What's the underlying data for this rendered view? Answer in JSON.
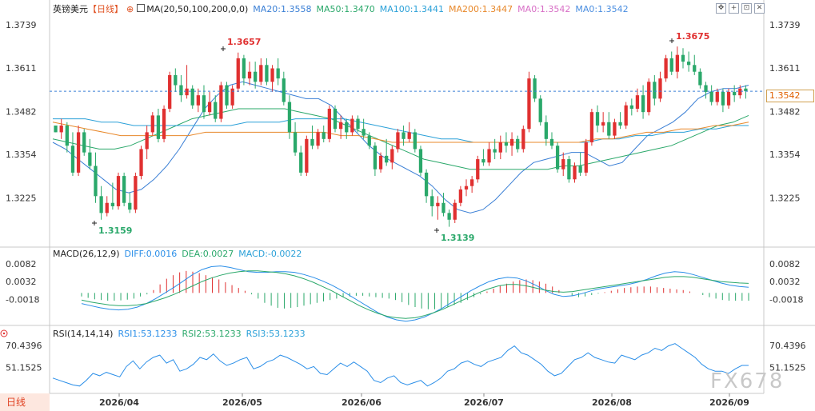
{
  "symbol": {
    "name": "英镑美元",
    "period": "【日线】"
  },
  "ma_legend": {
    "title": "MA(20,50,100,200,0,0)",
    "items": [
      {
        "label": "MA20:1.3558",
        "color": "#3a7fd5"
      },
      {
        "label": "MA50:1.3470",
        "color": "#2aa86a"
      },
      {
        "label": "MA100:1.3441",
        "color": "#2aa0d8"
      },
      {
        "label": "MA200:1.3447",
        "color": "#e8882a"
      },
      {
        "label": "MA0:1.3542",
        "color": "#d86fc6"
      },
      {
        "label": "MA0:1.3542",
        "color": "#4a8ee0"
      }
    ]
  },
  "toolbar": {
    "icons": [
      "move-icon",
      "crosshair-icon",
      "zoom-icon",
      "close-icon"
    ]
  },
  "current_price": "1.3542",
  "price_axis": {
    "ticks": [
      "1.3739",
      "1.3611",
      "1.3482",
      "1.3354",
      "1.3225"
    ]
  },
  "annotations": {
    "high_1": "1.3657",
    "high_2": "1.3675",
    "low_1": "1.3159",
    "low_2": "1.3139"
  },
  "macd": {
    "title": "MACD(26,12,9)",
    "diff": {
      "label": "DIFF:0.0016",
      "color": "#2a8ee8"
    },
    "dea": {
      "label": "DEA:0.0027",
      "color": "#2aa86a"
    },
    "macd": {
      "label": "MACD:-0.0022",
      "color": "#2aa0d8"
    },
    "ticks": [
      "0.0082",
      "0.0032",
      "-0.0018"
    ]
  },
  "rsi": {
    "title": "RSI(14,14,14)",
    "rsi1": {
      "label": "RSI1:53.1233"
    },
    "rsi2": {
      "label": "RSI2:53.1233"
    },
    "rsi3": {
      "label": "RSI3:53.1233"
    },
    "ticks_left": [
      "70.4396",
      "51.1525"
    ],
    "ticks_right": [
      "70.4396",
      "51.1525"
    ]
  },
  "date_axis": [
    "2026/04",
    "2026/05",
    "2026/06",
    "2026/07",
    "2026/08",
    "2026/09"
  ],
  "period_button": "日线",
  "watermark": "FX678",
  "colors": {
    "up": "#e03030",
    "down": "#2aa86a",
    "axis": "#c8c8c8",
    "dashed_price": "#3a7fd5"
  },
  "chart_data": {
    "type": "candlestick",
    "ylim": [
      1.31,
      1.378
    ],
    "x_labels": [
      "2026/04",
      "2026/05",
      "2026/06",
      "2026/07",
      "2026/08",
      "2026/09"
    ],
    "candles": [
      [
        1.344,
        1.344,
        1.342,
        1.342
      ],
      [
        1.342,
        1.346,
        1.34,
        1.344
      ],
      [
        1.344,
        1.345,
        1.336,
        1.338
      ],
      [
        1.338,
        1.342,
        1.329,
        1.33
      ],
      [
        1.33,
        1.344,
        1.329,
        1.342
      ],
      [
        1.342,
        1.343,
        1.335,
        1.336
      ],
      [
        1.336,
        1.34,
        1.331,
        1.332
      ],
      [
        1.332,
        1.336,
        1.321,
        1.323
      ],
      [
        1.323,
        1.326,
        1.316,
        1.318
      ],
      [
        1.318,
        1.323,
        1.317,
        1.321
      ],
      [
        1.321,
        1.327,
        1.319,
        1.32
      ],
      [
        1.32,
        1.33,
        1.319,
        1.329
      ],
      [
        1.329,
        1.33,
        1.32,
        1.321
      ],
      [
        1.321,
        1.324,
        1.318,
        1.319
      ],
      [
        1.319,
        1.33,
        1.318,
        1.329
      ],
      [
        1.329,
        1.338,
        1.328,
        1.337
      ],
      [
        1.337,
        1.344,
        1.334,
        1.342
      ],
      [
        1.342,
        1.348,
        1.341,
        1.347
      ],
      [
        1.347,
        1.349,
        1.339,
        1.34
      ],
      [
        1.34,
        1.35,
        1.339,
        1.349
      ],
      [
        1.349,
        1.36,
        1.348,
        1.359
      ],
      [
        1.359,
        1.361,
        1.354,
        1.356
      ],
      [
        1.356,
        1.359,
        1.351,
        1.353
      ],
      [
        1.353,
        1.362,
        1.352,
        1.355
      ],
      [
        1.355,
        1.356,
        1.349,
        1.35
      ],
      [
        1.35,
        1.355,
        1.348,
        1.353
      ],
      [
        1.353,
        1.356,
        1.346,
        1.348
      ],
      [
        1.348,
        1.354,
        1.347,
        1.351
      ],
      [
        1.351,
        1.353,
        1.345,
        1.346
      ],
      [
        1.346,
        1.357,
        1.345,
        1.356
      ],
      [
        1.356,
        1.357,
        1.349,
        1.35
      ],
      [
        1.35,
        1.356,
        1.349,
        1.355
      ],
      [
        1.355,
        1.3657,
        1.354,
        1.364
      ],
      [
        1.364,
        1.365,
        1.356,
        1.358
      ],
      [
        1.358,
        1.363,
        1.356,
        1.36
      ],
      [
        1.36,
        1.363,
        1.355,
        1.357
      ],
      [
        1.357,
        1.364,
        1.356,
        1.362
      ],
      [
        1.362,
        1.364,
        1.356,
        1.357
      ],
      [
        1.357,
        1.362,
        1.354,
        1.361
      ],
      [
        1.361,
        1.364,
        1.356,
        1.358
      ],
      [
        1.358,
        1.36,
        1.35,
        1.351
      ],
      [
        1.351,
        1.353,
        1.34,
        1.342
      ],
      [
        1.342,
        1.345,
        1.335,
        1.336
      ],
      [
        1.336,
        1.338,
        1.329,
        1.33
      ],
      [
        1.33,
        1.341,
        1.329,
        1.34
      ],
      [
        1.34,
        1.344,
        1.337,
        1.338
      ],
      [
        1.338,
        1.343,
        1.337,
        1.342
      ],
      [
        1.342,
        1.344,
        1.339,
        1.34
      ],
      [
        1.34,
        1.35,
        1.339,
        1.349
      ],
      [
        1.349,
        1.35,
        1.342,
        1.343
      ],
      [
        1.343,
        1.347,
        1.34,
        1.345
      ],
      [
        1.345,
        1.346,
        1.34,
        1.342
      ],
      [
        1.342,
        1.347,
        1.341,
        1.346
      ],
      [
        1.346,
        1.347,
        1.342,
        1.343
      ],
      [
        1.343,
        1.346,
        1.34,
        1.341
      ],
      [
        1.341,
        1.342,
        1.337,
        1.338
      ],
      [
        1.338,
        1.339,
        1.329,
        1.331
      ],
      [
        1.331,
        1.336,
        1.33,
        1.335
      ],
      [
        1.335,
        1.34,
        1.332,
        1.333
      ],
      [
        1.333,
        1.338,
        1.331,
        1.337
      ],
      [
        1.337,
        1.343,
        1.336,
        1.342
      ],
      [
        1.342,
        1.344,
        1.338,
        1.34
      ],
      [
        1.34,
        1.345,
        1.339,
        1.342
      ],
      [
        1.342,
        1.343,
        1.336,
        1.337
      ],
      [
        1.337,
        1.338,
        1.329,
        1.33
      ],
      [
        1.33,
        1.331,
        1.321,
        1.323
      ],
      [
        1.323,
        1.325,
        1.317,
        1.32
      ],
      [
        1.32,
        1.323,
        1.316,
        1.321
      ],
      [
        1.321,
        1.324,
        1.317,
        1.318
      ],
      [
        1.318,
        1.319,
        1.3139,
        1.316
      ],
      [
        1.316,
        1.322,
        1.315,
        1.321
      ],
      [
        1.321,
        1.326,
        1.32,
        1.325
      ],
      [
        1.325,
        1.328,
        1.323,
        1.326
      ],
      [
        1.326,
        1.329,
        1.324,
        1.328
      ],
      [
        1.328,
        1.335,
        1.327,
        1.334
      ],
      [
        1.334,
        1.337,
        1.332,
        1.333
      ],
      [
        1.333,
        1.339,
        1.332,
        1.337
      ],
      [
        1.337,
        1.34,
        1.334,
        1.336
      ],
      [
        1.336,
        1.341,
        1.334,
        1.339
      ],
      [
        1.339,
        1.342,
        1.336,
        1.338
      ],
      [
        1.338,
        1.342,
        1.335,
        1.34
      ],
      [
        1.34,
        1.341,
        1.336,
        1.337
      ],
      [
        1.337,
        1.344,
        1.336,
        1.343
      ],
      [
        1.343,
        1.36,
        1.342,
        1.358
      ],
      [
        1.358,
        1.359,
        1.351,
        1.352
      ],
      [
        1.352,
        1.353,
        1.344,
        1.345
      ],
      [
        1.345,
        1.347,
        1.338,
        1.34
      ],
      [
        1.34,
        1.342,
        1.337,
        1.338
      ],
      [
        1.338,
        1.339,
        1.33,
        1.331
      ],
      [
        1.331,
        1.336,
        1.329,
        1.334
      ],
      [
        1.334,
        1.335,
        1.327,
        1.328
      ],
      [
        1.328,
        1.333,
        1.327,
        1.332
      ],
      [
        1.332,
        1.336,
        1.329,
        1.33
      ],
      [
        1.33,
        1.34,
        1.329,
        1.339
      ],
      [
        1.339,
        1.349,
        1.338,
        1.348
      ],
      [
        1.348,
        1.35,
        1.342,
        1.344
      ],
      [
        1.344,
        1.348,
        1.342,
        1.345
      ],
      [
        1.345,
        1.348,
        1.34,
        1.341
      ],
      [
        1.341,
        1.346,
        1.34,
        1.345
      ],
      [
        1.345,
        1.348,
        1.343,
        1.344
      ],
      [
        1.344,
        1.351,
        1.343,
        1.35
      ],
      [
        1.35,
        1.352,
        1.347,
        1.349
      ],
      [
        1.349,
        1.355,
        1.348,
        1.353
      ],
      [
        1.353,
        1.356,
        1.346,
        1.348
      ],
      [
        1.348,
        1.358,
        1.347,
        1.357
      ],
      [
        1.357,
        1.359,
        1.35,
        1.352
      ],
      [
        1.352,
        1.36,
        1.351,
        1.358
      ],
      [
        1.358,
        1.365,
        1.357,
        1.364
      ],
      [
        1.364,
        1.366,
        1.359,
        1.36
      ],
      [
        1.36,
        1.3675,
        1.358,
        1.365
      ],
      [
        1.365,
        1.367,
        1.361,
        1.363
      ],
      [
        1.363,
        1.366,
        1.36,
        1.362
      ],
      [
        1.362,
        1.365,
        1.359,
        1.36
      ],
      [
        1.36,
        1.361,
        1.355,
        1.356
      ],
      [
        1.356,
        1.357,
        1.352,
        1.354
      ],
      [
        1.354,
        1.356,
        1.35,
        1.351
      ],
      [
        1.351,
        1.355,
        1.35,
        1.354
      ],
      [
        1.354,
        1.355,
        1.348,
        1.35
      ],
      [
        1.35,
        1.355,
        1.349,
        1.354
      ],
      [
        1.354,
        1.356,
        1.351,
        1.353
      ],
      [
        1.353,
        1.356,
        1.352,
        1.355
      ],
      [
        1.355,
        1.356,
        1.352,
        1.3542
      ]
    ],
    "ma_lines": [
      {
        "name": "MA20",
        "color": "#3a7fd5",
        "values": [
          1.339,
          1.337,
          1.334,
          1.331,
          1.328,
          1.325,
          1.324,
          1.325,
          1.328,
          1.332,
          1.337,
          1.343,
          1.349,
          1.353,
          1.356,
          1.357,
          1.356,
          1.355,
          1.354,
          1.353,
          1.352,
          1.352,
          1.35,
          1.346,
          1.342,
          1.338,
          1.335,
          1.333,
          1.331,
          1.329,
          1.326,
          1.322,
          1.319,
          1.318,
          1.319,
          1.322,
          1.326,
          1.33,
          1.333,
          1.334,
          1.335,
          1.336,
          1.336,
          1.334,
          1.332,
          1.333,
          1.337,
          1.341,
          1.343,
          1.345,
          1.348,
          1.352,
          1.354,
          1.355,
          1.355,
          1.356
        ]
      },
      {
        "name": "MA50",
        "color": "#2aa86a",
        "values": [
          1.34,
          1.339,
          1.338,
          1.337,
          1.337,
          1.338,
          1.34,
          1.342,
          1.344,
          1.346,
          1.347,
          1.348,
          1.349,
          1.349,
          1.349,
          1.349,
          1.348,
          1.347,
          1.346,
          1.344,
          1.342,
          1.34,
          1.338,
          1.336,
          1.334,
          1.333,
          1.332,
          1.331,
          1.331,
          1.331,
          1.331,
          1.331,
          1.331,
          1.332,
          1.332,
          1.333,
          1.334,
          1.335,
          1.336,
          1.337,
          1.338,
          1.34,
          1.342,
          1.344,
          1.345,
          1.347
        ]
      },
      {
        "name": "MA100",
        "color": "#2aa0d8",
        "values": [
          1.346,
          1.346,
          1.346,
          1.345,
          1.345,
          1.344,
          1.344,
          1.344,
          1.344,
          1.344,
          1.344,
          1.344,
          1.345,
          1.345,
          1.345,
          1.346,
          1.346,
          1.346,
          1.346,
          1.345,
          1.344,
          1.343,
          1.342,
          1.341,
          1.34,
          1.34,
          1.339,
          1.339,
          1.339,
          1.339,
          1.339,
          1.339,
          1.339,
          1.339,
          1.34,
          1.34,
          1.341,
          1.341,
          1.342,
          1.342,
          1.343,
          1.343,
          1.344,
          1.344
        ]
      },
      {
        "name": "MA200",
        "color": "#e8882a",
        "values": [
          1.345,
          1.344,
          1.343,
          1.342,
          1.341,
          1.341,
          1.341,
          1.341,
          1.341,
          1.342,
          1.342,
          1.342,
          1.342,
          1.342,
          1.342,
          1.342,
          1.342,
          1.341,
          1.341,
          1.34,
          1.339,
          1.339,
          1.339,
          1.339,
          1.339,
          1.339,
          1.339,
          1.339,
          1.339,
          1.339,
          1.339,
          1.339,
          1.34,
          1.34,
          1.341,
          1.342,
          1.342,
          1.343,
          1.343,
          1.344,
          1.344,
          1.345
        ]
      }
    ],
    "macd_hist": [
      -0.001,
      -0.0014,
      -0.0018,
      -0.002,
      -0.0022,
      -0.0022,
      -0.0021,
      -0.0019,
      -0.0016,
      -0.001,
      -0.0004,
      0.0008,
      0.0024,
      0.004,
      0.005,
      0.0058,
      0.0062,
      0.006,
      0.0056,
      0.005,
      0.0044,
      0.0038,
      0.003,
      0.0022,
      0.0014,
      0.0006,
      -0.0004,
      -0.0016,
      -0.0028,
      -0.0036,
      -0.0042,
      -0.0044,
      -0.0042,
      -0.004,
      -0.0036,
      -0.0032,
      -0.0028,
      -0.0024,
      -0.002,
      -0.0016,
      -0.0012,
      -0.001,
      -0.0008,
      -0.0008,
      -0.001,
      -0.0012,
      -0.0014,
      -0.0016,
      -0.002,
      -0.0026,
      -0.0034,
      -0.004,
      -0.0044,
      -0.0046,
      -0.0046,
      -0.0044,
      -0.004,
      -0.0034,
      -0.0028,
      -0.002,
      -0.0012,
      -0.0004,
      0.0004,
      0.0012,
      0.002,
      0.0026,
      0.0032,
      0.0036,
      0.0038,
      0.0036,
      0.0032,
      0.0026,
      0.0018,
      0.0008,
      0.0,
      -0.0008,
      -0.0012,
      -0.001,
      -0.0006,
      -0.0002,
      0.0002,
      0.0006,
      0.001,
      0.0014,
      0.0016,
      0.0018,
      0.0018,
      0.0018,
      0.0016,
      0.0014,
      0.0012,
      0.001,
      0.0008,
      0.0004,
      0.0,
      -0.0006,
      -0.0012,
      -0.0016,
      -0.002,
      -0.0022,
      -0.0022,
      -0.0022,
      -0.0022
    ],
    "macd_diff": [
      -0.003,
      -0.0036,
      -0.0042,
      -0.0046,
      -0.0048,
      -0.0046,
      -0.004,
      -0.003,
      -0.0016,
      0.0,
      0.0016,
      0.0034,
      0.0052,
      0.0066,
      0.0074,
      0.0076,
      0.0072,
      0.0066,
      0.006,
      0.0058,
      0.0058,
      0.006,
      0.006,
      0.0058,
      0.0052,
      0.0044,
      0.0034,
      0.0022,
      0.0008,
      -0.0008,
      -0.0024,
      -0.004,
      -0.0056,
      -0.0068,
      -0.0076,
      -0.008,
      -0.0076,
      -0.0068,
      -0.0056,
      -0.0042,
      -0.0026,
      -0.001,
      0.0006,
      0.002,
      0.0032,
      0.004,
      0.0044,
      0.0042,
      0.0034,
      0.0022,
      0.0008,
      -0.0004,
      -0.001,
      -0.0008,
      -0.0002,
      0.0006,
      0.0012,
      0.0016,
      0.002,
      0.0024,
      0.003,
      0.0038,
      0.0048,
      0.0056,
      0.006,
      0.0058,
      0.0052,
      0.0044,
      0.0036,
      0.0028,
      0.0022,
      0.0018,
      0.0016
    ],
    "macd_dea": [
      -0.002,
      -0.0026,
      -0.003,
      -0.0034,
      -0.0036,
      -0.0036,
      -0.0034,
      -0.003,
      -0.0022,
      -0.0014,
      -0.0004,
      0.0008,
      0.002,
      0.0032,
      0.0042,
      0.005,
      0.0056,
      0.006,
      0.0062,
      0.0062,
      0.006,
      0.0058,
      0.0054,
      0.0048,
      0.004,
      0.003,
      0.0018,
      0.0006,
      -0.0008,
      -0.0022,
      -0.0036,
      -0.0048,
      -0.0058,
      -0.0066,
      -0.007,
      -0.0072,
      -0.007,
      -0.0064,
      -0.0056,
      -0.0046,
      -0.0034,
      -0.0022,
      -0.001,
      0.0002,
      0.0012,
      0.002,
      0.0024,
      0.0024,
      0.002,
      0.0014,
      0.0008,
      0.0004,
      0.0002,
      0.0004,
      0.0008,
      0.0012,
      0.0016,
      0.002,
      0.0024,
      0.0028,
      0.0032,
      0.0036,
      0.004,
      0.0044,
      0.0046,
      0.0046,
      0.0044,
      0.004,
      0.0036,
      0.0032,
      0.003,
      0.0028,
      0.0027
    ],
    "rsi_values": [
      42,
      40,
      38,
      36,
      35,
      40,
      46,
      44,
      47,
      45,
      43,
      52,
      57,
      50,
      56,
      60,
      62,
      55,
      58,
      48,
      50,
      54,
      60,
      58,
      63,
      57,
      53,
      55,
      58,
      60,
      50,
      52,
      56,
      58,
      62,
      60,
      57,
      54,
      50,
      52,
      46,
      45,
      50,
      55,
      52,
      56,
      52,
      48,
      40,
      38,
      42,
      44,
      38,
      36,
      38,
      40,
      35,
      38,
      42,
      48,
      50,
      55,
      57,
      54,
      52,
      56,
      58,
      60,
      66,
      70,
      64,
      62,
      58,
      54,
      48,
      44,
      46,
      52,
      58,
      60,
      64,
      60,
      58,
      56,
      55,
      62,
      60,
      58,
      62,
      64,
      68,
      66,
      70,
      72,
      68,
      64,
      60,
      54,
      50,
      48,
      48,
      46,
      50,
      53,
      53
    ]
  }
}
